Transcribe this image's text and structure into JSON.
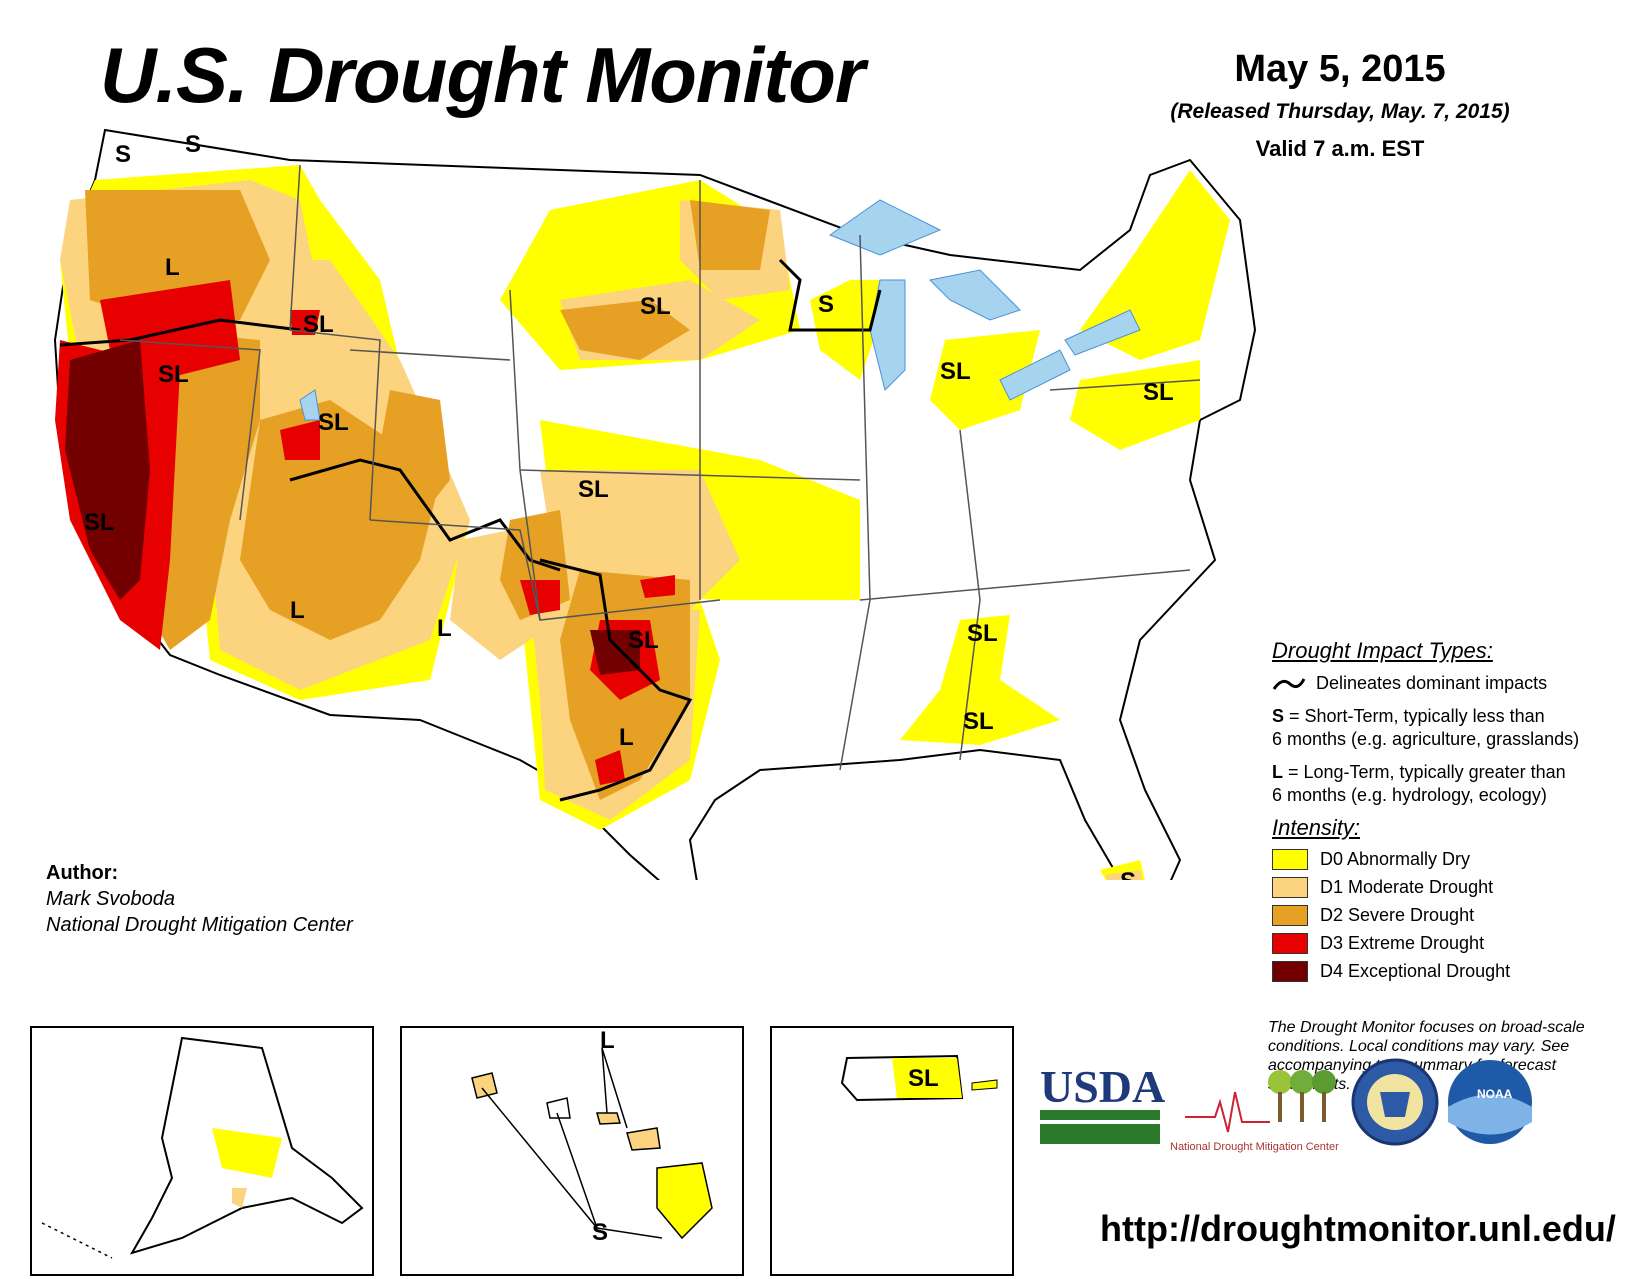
{
  "header": {
    "title": "U.S. Drought Monitor",
    "date": "May 5, 2015",
    "released": "(Released Thursday, May. 7, 2015)",
    "valid": "Valid 7 a.m. EST"
  },
  "map_labels": {
    "wa_west": "S",
    "wa_north": "S",
    "or": "L",
    "id": "SL",
    "nv": "SL",
    "ut": "SL",
    "ca": "SL",
    "az": "L",
    "nm": "L",
    "ks": "SL",
    "sd": "SL",
    "wi": "S",
    "mi": "SL",
    "pa": "SL",
    "ok": "SL",
    "tx": "L",
    "ga": "SL",
    "ga_south": "SL",
    "fl": "S",
    "hi_l": "L",
    "hi_s": "S",
    "pr": "SL"
  },
  "author": {
    "label": "Author:",
    "name": "Mark Svoboda",
    "org": "National Drought Mitigation Center"
  },
  "legend": {
    "impact_title": "Drought Impact Types:",
    "delineates": "Delineates dominant impacts",
    "s_key": "S",
    "s_line1": " = Short-Term, typically less than",
    "s_line2": "6 months (e.g. agriculture, grasslands)",
    "l_key": "L",
    "l_line1": " = Long-Term, typically greater than",
    "l_line2": "6 months (e.g. hydrology, ecology)",
    "intensity_title": "Intensity:",
    "categories": [
      {
        "label": "D0 Abnormally Dry",
        "color": "#ffff00"
      },
      {
        "label": "D1 Moderate Drought",
        "color": "#fcd37f"
      },
      {
        "label": "D2 Severe Drought",
        "color": "#e6a023"
      },
      {
        "label": "D3 Extreme Drought",
        "color": "#e60000"
      },
      {
        "label": "D4 Exceptional Drought",
        "color": "#730000"
      }
    ]
  },
  "note": "The Drought Monitor focuses on broad-scale conditions. Local conditions may vary. See accompanying text summary for forecast statements.",
  "logos": {
    "usda": "USDA",
    "ndmc": "National Drought Mitigation Center",
    "noaa": "NOAA"
  },
  "url": "http://droughtmonitor.unl.edu/"
}
